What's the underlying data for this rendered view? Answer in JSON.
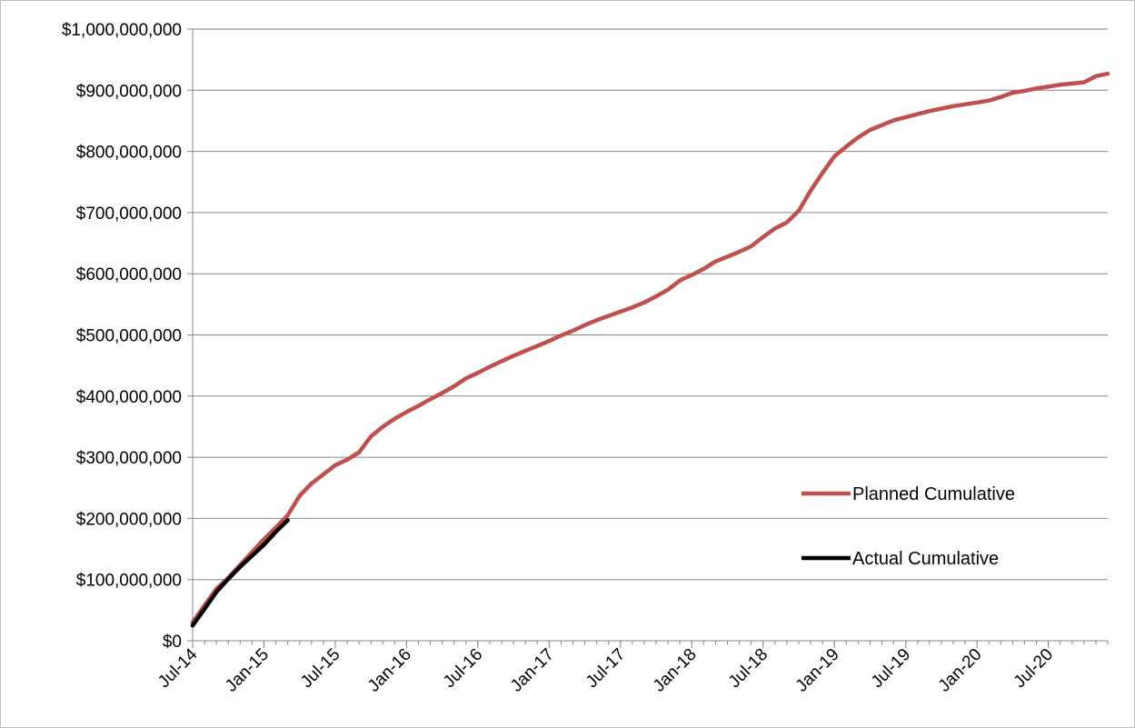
{
  "chart_data": {
    "type": "line",
    "title": "",
    "xlabel": "",
    "ylabel": "",
    "x_tick_labels": [
      "Jul-14",
      "Jan-15",
      "Jul-15",
      "Jan-16",
      "Jul-16",
      "Jan-17",
      "Jul-17",
      "Jan-18",
      "Jul-18",
      "Jan-19",
      "Jul-19",
      "Jan-20",
      "Jul-20"
    ],
    "x_tick_dates": [
      "2014-07",
      "2015-01",
      "2015-07",
      "2016-01",
      "2016-07",
      "2017-01",
      "2017-07",
      "2018-01",
      "2018-07",
      "2019-01",
      "2019-07",
      "2020-01",
      "2020-07"
    ],
    "xlim": [
      "2014-07",
      "2020-12"
    ],
    "ylim": [
      0,
      1000000000
    ],
    "y_tick_values": [
      0,
      100000000,
      200000000,
      300000000,
      400000000,
      500000000,
      600000000,
      700000000,
      800000000,
      900000000,
      1000000000
    ],
    "y_tick_labels": [
      "$0",
      "$100,000,000",
      "$200,000,000",
      "$300,000,000",
      "$400,000,000",
      "$500,000,000",
      "$600,000,000",
      "$700,000,000",
      "$800,000,000",
      "$900,000,000",
      "$1,000,000,000"
    ],
    "grid": "horizontal",
    "legend_position": "right",
    "series": [
      {
        "name": "Planned Cumulative",
        "color": "#c0504d",
        "x": [
          "2014-07",
          "2014-08",
          "2014-09",
          "2014-10",
          "2014-11",
          "2014-12",
          "2015-01",
          "2015-02",
          "2015-03",
          "2015-04",
          "2015-05",
          "2015-06",
          "2015-07",
          "2015-08",
          "2015-09",
          "2015-10",
          "2015-11",
          "2015-12",
          "2016-01",
          "2016-02",
          "2016-03",
          "2016-04",
          "2016-05",
          "2016-06",
          "2016-07",
          "2016-08",
          "2016-09",
          "2016-10",
          "2016-11",
          "2016-12",
          "2017-01",
          "2017-02",
          "2017-03",
          "2017-04",
          "2017-05",
          "2017-06",
          "2017-07",
          "2017-08",
          "2017-09",
          "2017-10",
          "2017-11",
          "2017-12",
          "2018-01",
          "2018-02",
          "2018-03",
          "2018-04",
          "2018-05",
          "2018-06",
          "2018-07",
          "2018-08",
          "2018-09",
          "2018-10",
          "2018-11",
          "2018-12",
          "2019-01",
          "2019-02",
          "2019-03",
          "2019-04",
          "2019-05",
          "2019-06",
          "2019-07",
          "2019-08",
          "2019-09",
          "2019-10",
          "2019-11",
          "2019-12",
          "2020-01",
          "2020-02",
          "2020-03",
          "2020-04",
          "2020-05",
          "2020-06",
          "2020-07",
          "2020-08",
          "2020-09",
          "2020-10",
          "2020-11",
          "2020-12"
        ],
        "values": [
          30000000,
          58000000,
          85000000,
          103000000,
          124000000,
          145000000,
          166000000,
          185000000,
          205000000,
          237000000,
          257000000,
          272000000,
          287000000,
          296000000,
          308000000,
          334000000,
          350000000,
          363000000,
          374000000,
          384000000,
          395000000,
          405000000,
          416000000,
          429000000,
          438000000,
          448000000,
          457000000,
          466000000,
          474000000,
          482000000,
          490000000,
          499000000,
          507000000,
          516000000,
          524000000,
          531000000,
          538000000,
          545000000,
          553000000,
          563000000,
          574000000,
          589000000,
          598000000,
          608000000,
          620000000,
          628000000,
          636000000,
          645000000,
          660000000,
          674000000,
          684000000,
          703000000,
          736000000,
          765000000,
          792000000,
          808000000,
          823000000,
          835000000,
          843000000,
          851000000,
          856000000,
          861000000,
          866000000,
          870000000,
          874000000,
          877000000,
          880000000,
          883000000,
          889000000,
          896000000,
          899000000,
          903000000,
          906000000,
          909000000,
          911000000,
          913000000,
          923000000,
          927000000
        ]
      },
      {
        "name": "Actual Cumulative",
        "color": "#000000",
        "x": [
          "2014-07",
          "2014-08",
          "2014-09",
          "2014-10",
          "2014-11",
          "2014-12",
          "2015-01",
          "2015-02",
          "2015-03"
        ],
        "values": [
          25000000,
          52000000,
          80000000,
          101000000,
          121000000,
          139000000,
          157000000,
          178000000,
          197000000
        ]
      }
    ]
  }
}
